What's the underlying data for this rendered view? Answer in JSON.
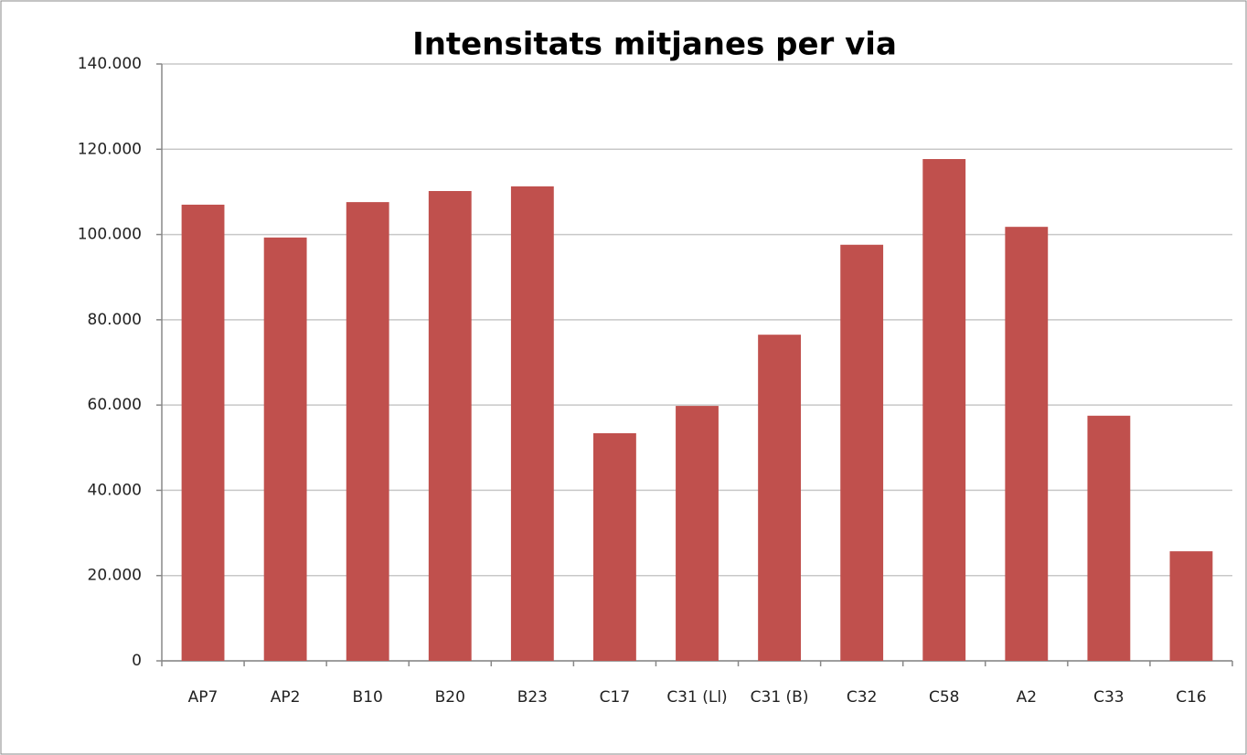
{
  "chart_data": {
    "type": "bar",
    "title": "Intensitats mitjanes per via",
    "categories": [
      "AP7",
      "AP2",
      "B10",
      "B20",
      "B23",
      "C17",
      "C31 (Ll)",
      "C31 (B)",
      "C32",
      "C58",
      "A2",
      "C33",
      "C16"
    ],
    "values": [
      107000,
      99300,
      107600,
      110200,
      111300,
      53400,
      59800,
      76500,
      97600,
      117700,
      101800,
      57500,
      25700
    ],
    "color": "#c0504d",
    "ylim": [
      0,
      140000
    ],
    "yticks": [
      0,
      {
        "value": 20000,
        "label": "20.000"
      },
      {
        "value": 40000,
        "label": "40.000"
      },
      {
        "value": 60000,
        "label": "60.000"
      },
      {
        "value": 80000,
        "label": "80.000"
      },
      {
        "value": 100000,
        "label": "100.000"
      },
      {
        "value": 120000,
        "label": "120.000"
      },
      {
        "value": 140000,
        "label": "140.000"
      }
    ],
    "grid": true
  }
}
